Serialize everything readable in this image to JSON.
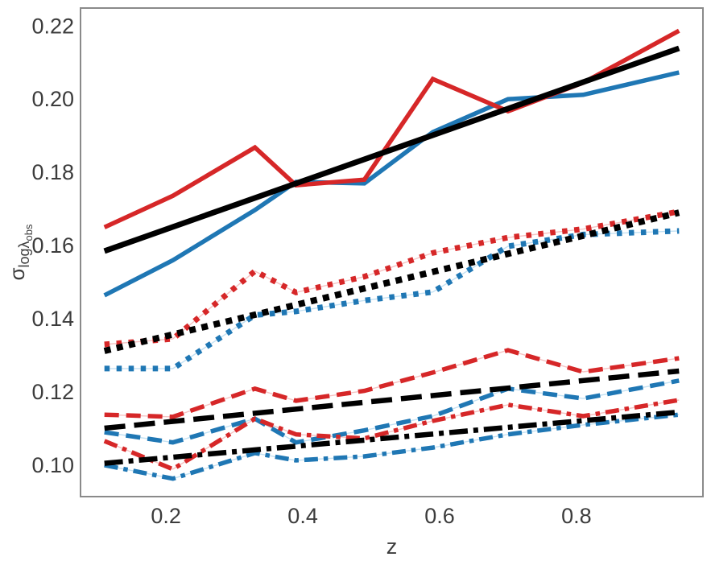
{
  "figure": {
    "background": "#ffffff",
    "spine_color": "#8a8a8a",
    "tick_label_color": "#3c3c3c",
    "red": "#d62728",
    "blue": "#1f77b4",
    "black": "#000000",
    "red_faint": "#f6c3c3",
    "blue_faint": "#c3e1f3"
  },
  "chart_data": {
    "type": "line",
    "title": "",
    "xlabel": "z",
    "ylabel": "sigma_logLambda_obs",
    "ylabel_parts": {
      "sigma": "σ",
      "sub": "logλ",
      "subsub": "obs"
    },
    "xlim": [
      0.075,
      0.985
    ],
    "ylim": [
      0.0914,
      0.2249
    ],
    "xticks": [
      0.2,
      0.4,
      0.6,
      0.8
    ],
    "xtick_labels": [
      "0.2",
      "0.4",
      "0.6",
      "0.8"
    ],
    "yticks": [
      0.1,
      0.12,
      0.14,
      0.16,
      0.18,
      0.2,
      0.22
    ],
    "ytick_labels": [
      "0.10",
      "0.12",
      "0.14",
      "0.16",
      "0.18",
      "0.20",
      "0.22"
    ],
    "grid": false,
    "legend": null,
    "x": [
      0.11,
      0.21,
      0.33,
      0.39,
      0.49,
      0.59,
      0.7,
      0.81,
      0.95
    ],
    "series": [
      {
        "name": "blue-dotted",
        "color": "blue",
        "style": "dotted",
        "values": [
          0.1264,
          0.1264,
          0.141,
          0.142,
          0.145,
          0.1473,
          0.1598,
          0.163,
          0.164
        ]
      },
      {
        "name": "blue-dashed",
        "color": "blue",
        "style": "dashed",
        "values": [
          0.109,
          0.1062,
          0.1127,
          0.1062,
          0.1095,
          0.1134,
          0.1209,
          0.1182,
          0.1231
        ]
      },
      {
        "name": "blue-dashdot",
        "color": "blue",
        "style": "dashdot",
        "values": [
          0.1,
          0.0963,
          0.1033,
          0.1013,
          0.1024,
          0.1048,
          0.1084,
          0.111,
          0.1138
        ]
      },
      {
        "name": "blue-solid",
        "color": "blue",
        "style": "solid",
        "values": [
          0.1464,
          0.156,
          0.1697,
          0.1774,
          0.177,
          0.191,
          0.2,
          0.2012,
          0.2073
        ]
      },
      {
        "name": "red-dotted",
        "color": "red",
        "style": "dotted",
        "values": [
          0.133,
          0.1345,
          0.153,
          0.1472,
          0.1515,
          0.158,
          0.1622,
          0.1645,
          0.1693
        ]
      },
      {
        "name": "red-dashed",
        "color": "red",
        "style": "dashed",
        "values": [
          0.1138,
          0.1132,
          0.1209,
          0.1176,
          0.1203,
          0.1253,
          0.1314,
          0.1255,
          0.1292
        ]
      },
      {
        "name": "red-dashdot",
        "color": "red",
        "style": "dashdot",
        "values": [
          0.1066,
          0.0989,
          0.1127,
          0.1084,
          0.1073,
          0.1121,
          0.1165,
          0.1134,
          0.1178
        ]
      },
      {
        "name": "red-solid",
        "color": "red",
        "style": "solid",
        "values": [
          0.165,
          0.1736,
          0.1868,
          0.1765,
          0.178,
          0.2055,
          0.1967,
          0.2045,
          0.2187
        ]
      },
      {
        "name": "fit-dashdot",
        "color": "black",
        "style": "dashdot",
        "x": [
          0.11,
          0.95
        ],
        "values": [
          0.1005,
          0.1145
        ]
      },
      {
        "name": "fit-dashed",
        "color": "black",
        "style": "dashed",
        "x": [
          0.11,
          0.95
        ],
        "values": [
          0.1101,
          0.1257
        ]
      },
      {
        "name": "fit-dotted",
        "color": "black",
        "style": "dotted",
        "x": [
          0.11,
          0.95
        ],
        "values": [
          0.1312,
          0.169
        ]
      },
      {
        "name": "fit-solid",
        "color": "black",
        "style": "solid",
        "x": [
          0.11,
          0.95
        ],
        "values": [
          0.1585,
          0.2139
        ]
      }
    ]
  }
}
